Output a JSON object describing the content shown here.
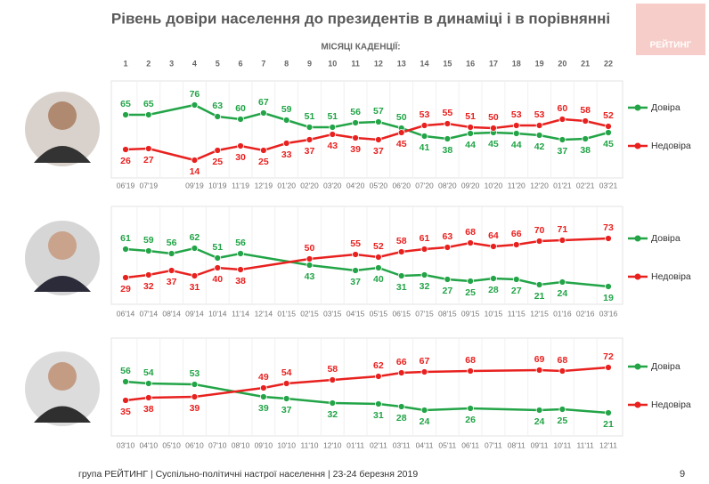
{
  "title": "Рівень довіри населення до президентів в динаміці і в порівнянні",
  "logo": "РЕЙТИНГ",
  "subtitle": "МІСЯЦІ КАДЕНЦІЇ:",
  "footer": "група РЕЙТИНГ | Суспільно-політичні настрої населення  | 23-24 березня 2019",
  "page_number": "9",
  "chart_data": [
    {
      "type": "line",
      "xlim": [
        1,
        22
      ],
      "ylim": [
        10,
        85
      ],
      "xticks": [
        1,
        2,
        3,
        4,
        5,
        6,
        7,
        8,
        9,
        10,
        11,
        12,
        13,
        14,
        15,
        16,
        17,
        18,
        19,
        20,
        21,
        22
      ],
      "categories": [
        "06'19",
        "07'19",
        null,
        "09'19",
        "10'19",
        "11'19",
        "12'19",
        "01'20",
        "02'20",
        "03'20",
        "04'20",
        "05'20",
        "06'20",
        "07'20",
        "08'20",
        "09'20",
        "10'20",
        "11'20",
        "12'20",
        "01'21",
        "02'21",
        "03'21"
      ],
      "x": [
        1,
        2,
        4,
        5,
        6,
        7,
        8,
        9,
        10,
        11,
        12,
        13,
        14,
        15,
        16,
        17,
        18,
        19,
        20,
        21,
        22
      ],
      "series": [
        {
          "name": "Довіра",
          "color": "#22a447",
          "values": [
            65,
            65,
            76,
            63,
            60,
            67,
            59,
            51,
            51,
            56,
            57,
            50,
            41,
            38,
            44,
            45,
            44,
            42,
            37,
            38,
            45
          ]
        },
        {
          "name": "Недовіра",
          "color": "#e8211f",
          "values": [
            26,
            27,
            14,
            25,
            30,
            25,
            33,
            37,
            43,
            39,
            37,
            45,
            53,
            55,
            51,
            50,
            53,
            53,
            60,
            58,
            52
          ]
        }
      ]
    },
    {
      "type": "line",
      "xlim": [
        1,
        22
      ],
      "ylim": [
        10,
        85
      ],
      "categories": [
        "06'14",
        "07'14",
        "08'14",
        "09'14",
        "10'14",
        "11'14",
        "12'14",
        "01'15",
        "02'15",
        "03'15",
        "04'15",
        "05'15",
        "06'15",
        "07'15",
        "08'15",
        "09'15",
        "10'15",
        "11'15",
        "12'15",
        "01'16",
        "02'16",
        "03'16"
      ],
      "x": [
        1,
        2,
        3,
        4,
        5,
        6,
        9,
        11,
        12,
        13,
        14,
        15,
        16,
        17,
        18,
        19,
        20,
        22
      ],
      "series": [
        {
          "name": "Довіра",
          "color": "#22a447",
          "values": [
            61,
            59,
            56,
            62,
            51,
            56,
            43,
            37,
            40,
            31,
            32,
            27,
            25,
            28,
            27,
            21,
            24,
            19
          ]
        },
        {
          "name": "Недовіра",
          "color": "#e8211f",
          "values": [
            29,
            32,
            37,
            31,
            40,
            38,
            50,
            55,
            52,
            58,
            61,
            63,
            68,
            64,
            66,
            70,
            71,
            73
          ]
        }
      ]
    },
    {
      "type": "line",
      "xlim": [
        1,
        22
      ],
      "ylim": [
        10,
        85
      ],
      "categories": [
        "03'10",
        "04'10",
        "05'10",
        "06'10",
        "07'10",
        "08'10",
        "09'10",
        "10'10",
        "11'10",
        "12'10",
        "01'11",
        "02'11",
        "03'11",
        "04'11",
        "05'11",
        "06'11",
        "07'11",
        "08'11",
        "09'11",
        "10'11",
        "11'11",
        "12'11"
      ],
      "x": [
        1,
        2,
        4,
        7,
        8,
        10,
        12,
        13,
        14,
        16,
        19,
        20,
        22
      ],
      "series": [
        {
          "name": "Довіра",
          "color": "#22a447",
          "values": [
            56,
            54,
            53,
            39,
            37,
            32,
            31,
            28,
            24,
            26,
            24,
            25,
            21
          ]
        },
        {
          "name": "Недовіра",
          "color": "#e8211f",
          "values": [
            35,
            38,
            39,
            49,
            54,
            58,
            62,
            66,
            67,
            68,
            69,
            68,
            72
          ]
        }
      ]
    }
  ]
}
